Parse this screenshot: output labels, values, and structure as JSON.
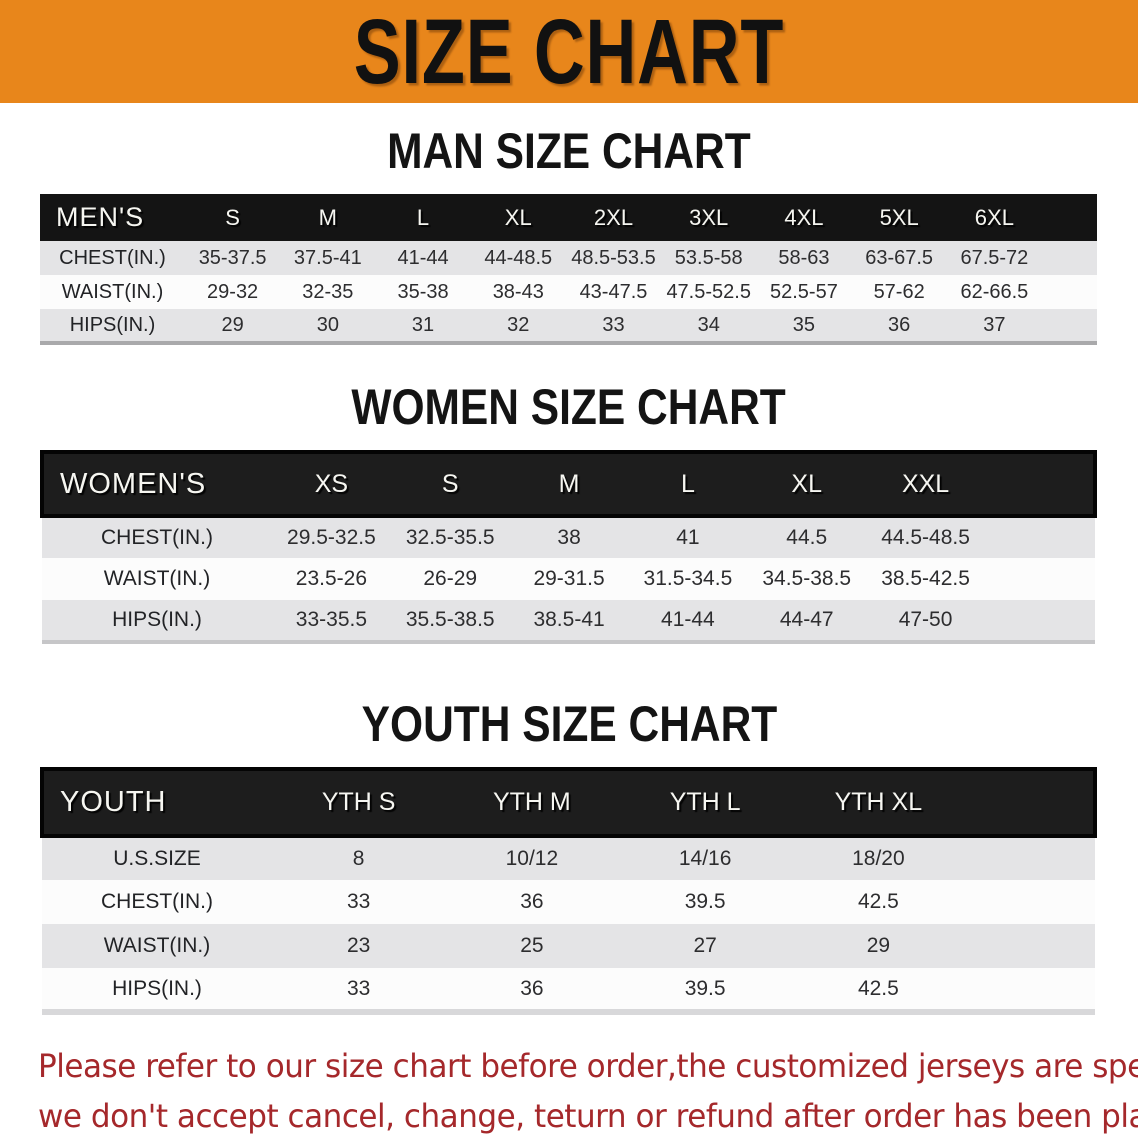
{
  "banner": {
    "title": "SIZE CHART",
    "bg_color": "#E8861B",
    "text_color": "#111111"
  },
  "sections": [
    {
      "key": "men",
      "heading": "MAN SIZE CHART",
      "style": "slim",
      "table": {
        "header_label": "MEN'S",
        "columns": [
          "S",
          "M",
          "L",
          "XL",
          "2XL",
          "3XL",
          "4XL",
          "5XL",
          "6XL"
        ],
        "rows": [
          {
            "label": "CHEST(IN.)",
            "values": [
              "35-37.5",
              "37.5-41",
              "41-44",
              "44-48.5",
              "48.5-53.5",
              "53.5-58",
              "58-63",
              "63-67.5",
              "67.5-72"
            ]
          },
          {
            "label": "WAIST(IN.)",
            "values": [
              "29-32",
              "32-35",
              "35-38",
              "38-43",
              "43-47.5",
              "47.5-52.5",
              "52.5-57",
              "57-62",
              "62-66.5"
            ]
          },
          {
            "label": "HIPS(IN.)",
            "values": [
              "29",
              "30",
              "31",
              "32",
              "33",
              "34",
              "35",
              "36",
              "37"
            ]
          }
        ]
      }
    },
    {
      "key": "women",
      "heading": "WOMEN SIZE CHART",
      "style": "framed",
      "table": {
        "header_label": "WOMEN'S",
        "columns": [
          "XS",
          "S",
          "M",
          "L",
          "XL",
          "XXL"
        ],
        "rows": [
          {
            "label": "CHEST(IN.)",
            "values": [
              "29.5-32.5",
              "32.5-35.5",
              "38",
              "41",
              "44.5",
              "44.5-48.5"
            ]
          },
          {
            "label": "WAIST(IN.)",
            "values": [
              "23.5-26",
              "26-29",
              "29-31.5",
              "31.5-34.5",
              "34.5-38.5",
              "38.5-42.5"
            ]
          },
          {
            "label": "HIPS(IN.)",
            "values": [
              "33-35.5",
              "35.5-38.5",
              "38.5-41",
              "41-44",
              "44-47",
              "47-50"
            ]
          }
        ]
      }
    },
    {
      "key": "youth",
      "heading": "YOUTH SIZE CHART",
      "style": "framed",
      "table": {
        "header_label": "YOUTH",
        "columns": [
          "YTH S",
          "YTH M",
          "YTH L",
          "YTH XL"
        ],
        "rows": [
          {
            "label": "U.S.SIZE",
            "values": [
              "8",
              "10/12",
              "14/16",
              "18/20"
            ]
          },
          {
            "label": "CHEST(IN.)",
            "values": [
              "33",
              "36",
              "39.5",
              "42.5"
            ]
          },
          {
            "label": "WAIST(IN.)",
            "values": [
              "23",
              "25",
              "27",
              "29"
            ]
          },
          {
            "label": "HIPS(IN.)",
            "values": [
              "33",
              "36",
              "39.5",
              "42.5"
            ]
          }
        ]
      }
    }
  ],
  "footer": {
    "line1": "Please refer to our size chart before order,the customized jerseys are special products,",
    "line2": "we don't accept cancel, change, teturn or refund after order has been placed!",
    "text_color": "#A5282B"
  },
  "colors": {
    "banner_orange": "#E8861B",
    "header_black": "#141414",
    "row_gray": "#E4E4E6",
    "row_white": "#FCFCFC",
    "note_red": "#A5282B"
  }
}
